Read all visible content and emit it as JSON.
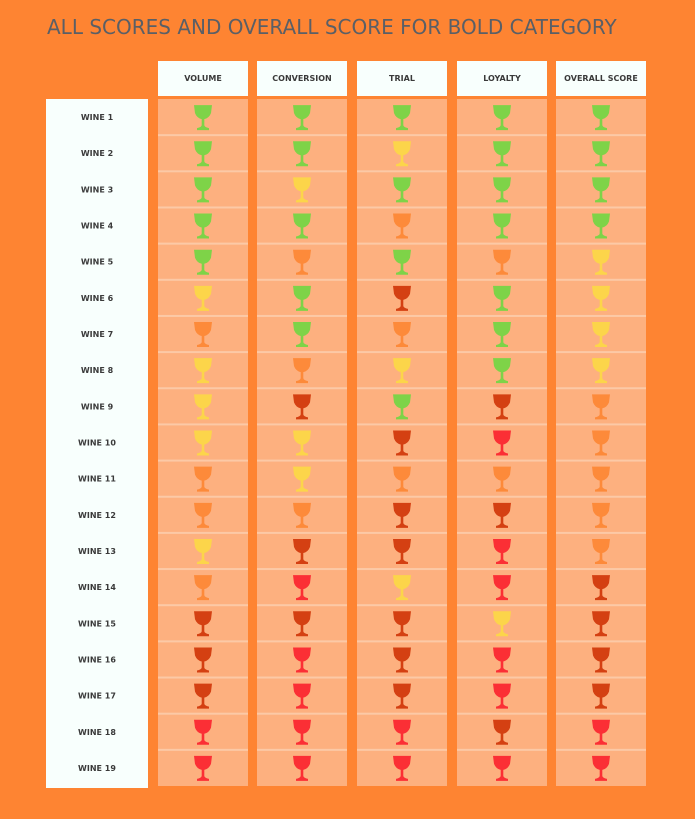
{
  "title": "ALL SCORES AND OVERALL SCORE FOR BOLD CATEGORY",
  "columns": [
    "VOLUME",
    "CONVERSION",
    "TRIAL",
    "LOYALTY",
    "OVERALL SCORE"
  ],
  "rows": [
    {
      "label": "WINE 1",
      "cells": [
        "#7ed348",
        "#7ed348",
        "#7ed348",
        "#7ed348",
        "#7ed348"
      ]
    },
    {
      "label": "WINE 2",
      "cells": [
        "#7ed348",
        "#7ed348",
        "#fcd54a",
        "#7ed348",
        "#7ed348"
      ]
    },
    {
      "label": "WINE 3",
      "cells": [
        "#7ed348",
        "#fcd54a",
        "#7ed348",
        "#7ed348",
        "#7ed348"
      ]
    },
    {
      "label": "WINE 4",
      "cells": [
        "#7ed348",
        "#7ed348",
        "#fd8a3a",
        "#7ed348",
        "#7ed348"
      ]
    },
    {
      "label": "WINE 5",
      "cells": [
        "#7ed348",
        "#fd8a3a",
        "#7ed348",
        "#fd8a3a",
        "#fcd54a"
      ]
    },
    {
      "label": "WINE 6",
      "cells": [
        "#fcd54a",
        "#7ed348",
        "#d44012",
        "#7ed348",
        "#fcd54a"
      ]
    },
    {
      "label": "WINE 7",
      "cells": [
        "#fd8a3a",
        "#7ed348",
        "#fd8a3a",
        "#7ed348",
        "#fcd54a"
      ]
    },
    {
      "label": "WINE 8",
      "cells": [
        "#fcd54a",
        "#fd8a3a",
        "#fcd54a",
        "#7ed348",
        "#fcd54a"
      ]
    },
    {
      "label": "WINE 9",
      "cells": [
        "#fcd54a",
        "#d44012",
        "#7ed348",
        "#d44012",
        "#fd8a3a"
      ]
    },
    {
      "label": "WINE 10",
      "cells": [
        "#fcd54a",
        "#fcd54a",
        "#d44012",
        "#fb2f35",
        "#fd8a3a"
      ]
    },
    {
      "label": "WINE 11",
      "cells": [
        "#fd8a3a",
        "#fcd54a",
        "#fd8a3a",
        "#fd8a3a",
        "#fd8a3a"
      ]
    },
    {
      "label": "WINE 12",
      "cells": [
        "#fd8a3a",
        "#fd8a3a",
        "#d44012",
        "#d44012",
        "#fd8a3a"
      ]
    },
    {
      "label": "WINE 13",
      "cells": [
        "#fcd54a",
        "#d44012",
        "#d44012",
        "#fb2f35",
        "#fd8a3a"
      ]
    },
    {
      "label": "WINE 14",
      "cells": [
        "#fd8a3a",
        "#fb2f35",
        "#fcd54a",
        "#fb2f35",
        "#d44012"
      ]
    },
    {
      "label": "WINE 15",
      "cells": [
        "#d44012",
        "#d44012",
        "#d44012",
        "#fcd54a",
        "#d44012"
      ]
    },
    {
      "label": "WINE 16",
      "cells": [
        "#d44012",
        "#fb2f35",
        "#d44012",
        "#fb2f35",
        "#d44012"
      ]
    },
    {
      "label": "WINE 17",
      "cells": [
        "#d44012",
        "#fb2f35",
        "#d44012",
        "#fb2f35",
        "#d44012"
      ]
    },
    {
      "label": "WINE 18",
      "cells": [
        "#fb2f35",
        "#fb2f35",
        "#fb2f35",
        "#d44012",
        "#fb2f35"
      ]
    },
    {
      "label": "WINE 19",
      "cells": [
        "#fb2f35",
        "#fb2f35",
        "#fb2f35",
        "#fb2f35",
        "#fb2f35"
      ]
    }
  ]
}
